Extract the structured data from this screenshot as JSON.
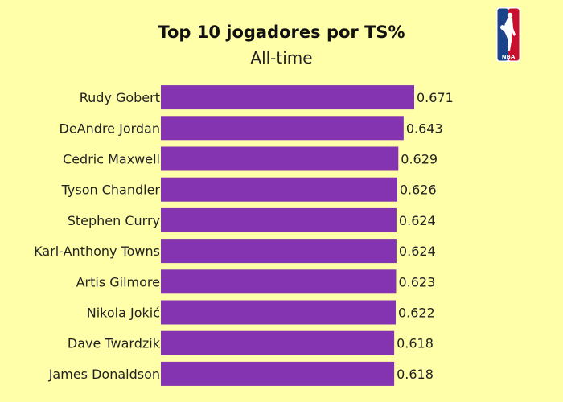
{
  "header": {
    "title": "Top 10 jogadores por TS%",
    "subtitle": "All-time"
  },
  "logo": {
    "name": "nba-logo",
    "text": "NBA",
    "colors": [
      "#1d428a",
      "#c8102e",
      "#ffffff"
    ]
  },
  "colors": {
    "background": "#ffffaa",
    "bar": "#8434b0"
  },
  "chart_data": {
    "type": "bar",
    "orientation": "horizontal",
    "title": "Top 10 jogadores por TS%",
    "subtitle": "All-time",
    "xlim": [
      0,
      0.671
    ],
    "grid": false,
    "legend": "none",
    "categories": [
      "Rudy Gobert",
      "DeAndre Jordan",
      "Cedric Maxwell",
      "Tyson Chandler",
      "Stephen Curry",
      "Karl-Anthony Towns",
      "Artis Gilmore",
      "Nikola Jokić",
      "Dave Twardzik",
      "James Donaldson"
    ],
    "values": [
      0.671,
      0.643,
      0.629,
      0.626,
      0.624,
      0.624,
      0.623,
      0.622,
      0.618,
      0.618
    ],
    "data_labels": [
      "0.671",
      "0.643",
      "0.629",
      "0.626",
      "0.624",
      "0.624",
      "0.623",
      "0.622",
      "0.618",
      "0.618"
    ]
  }
}
